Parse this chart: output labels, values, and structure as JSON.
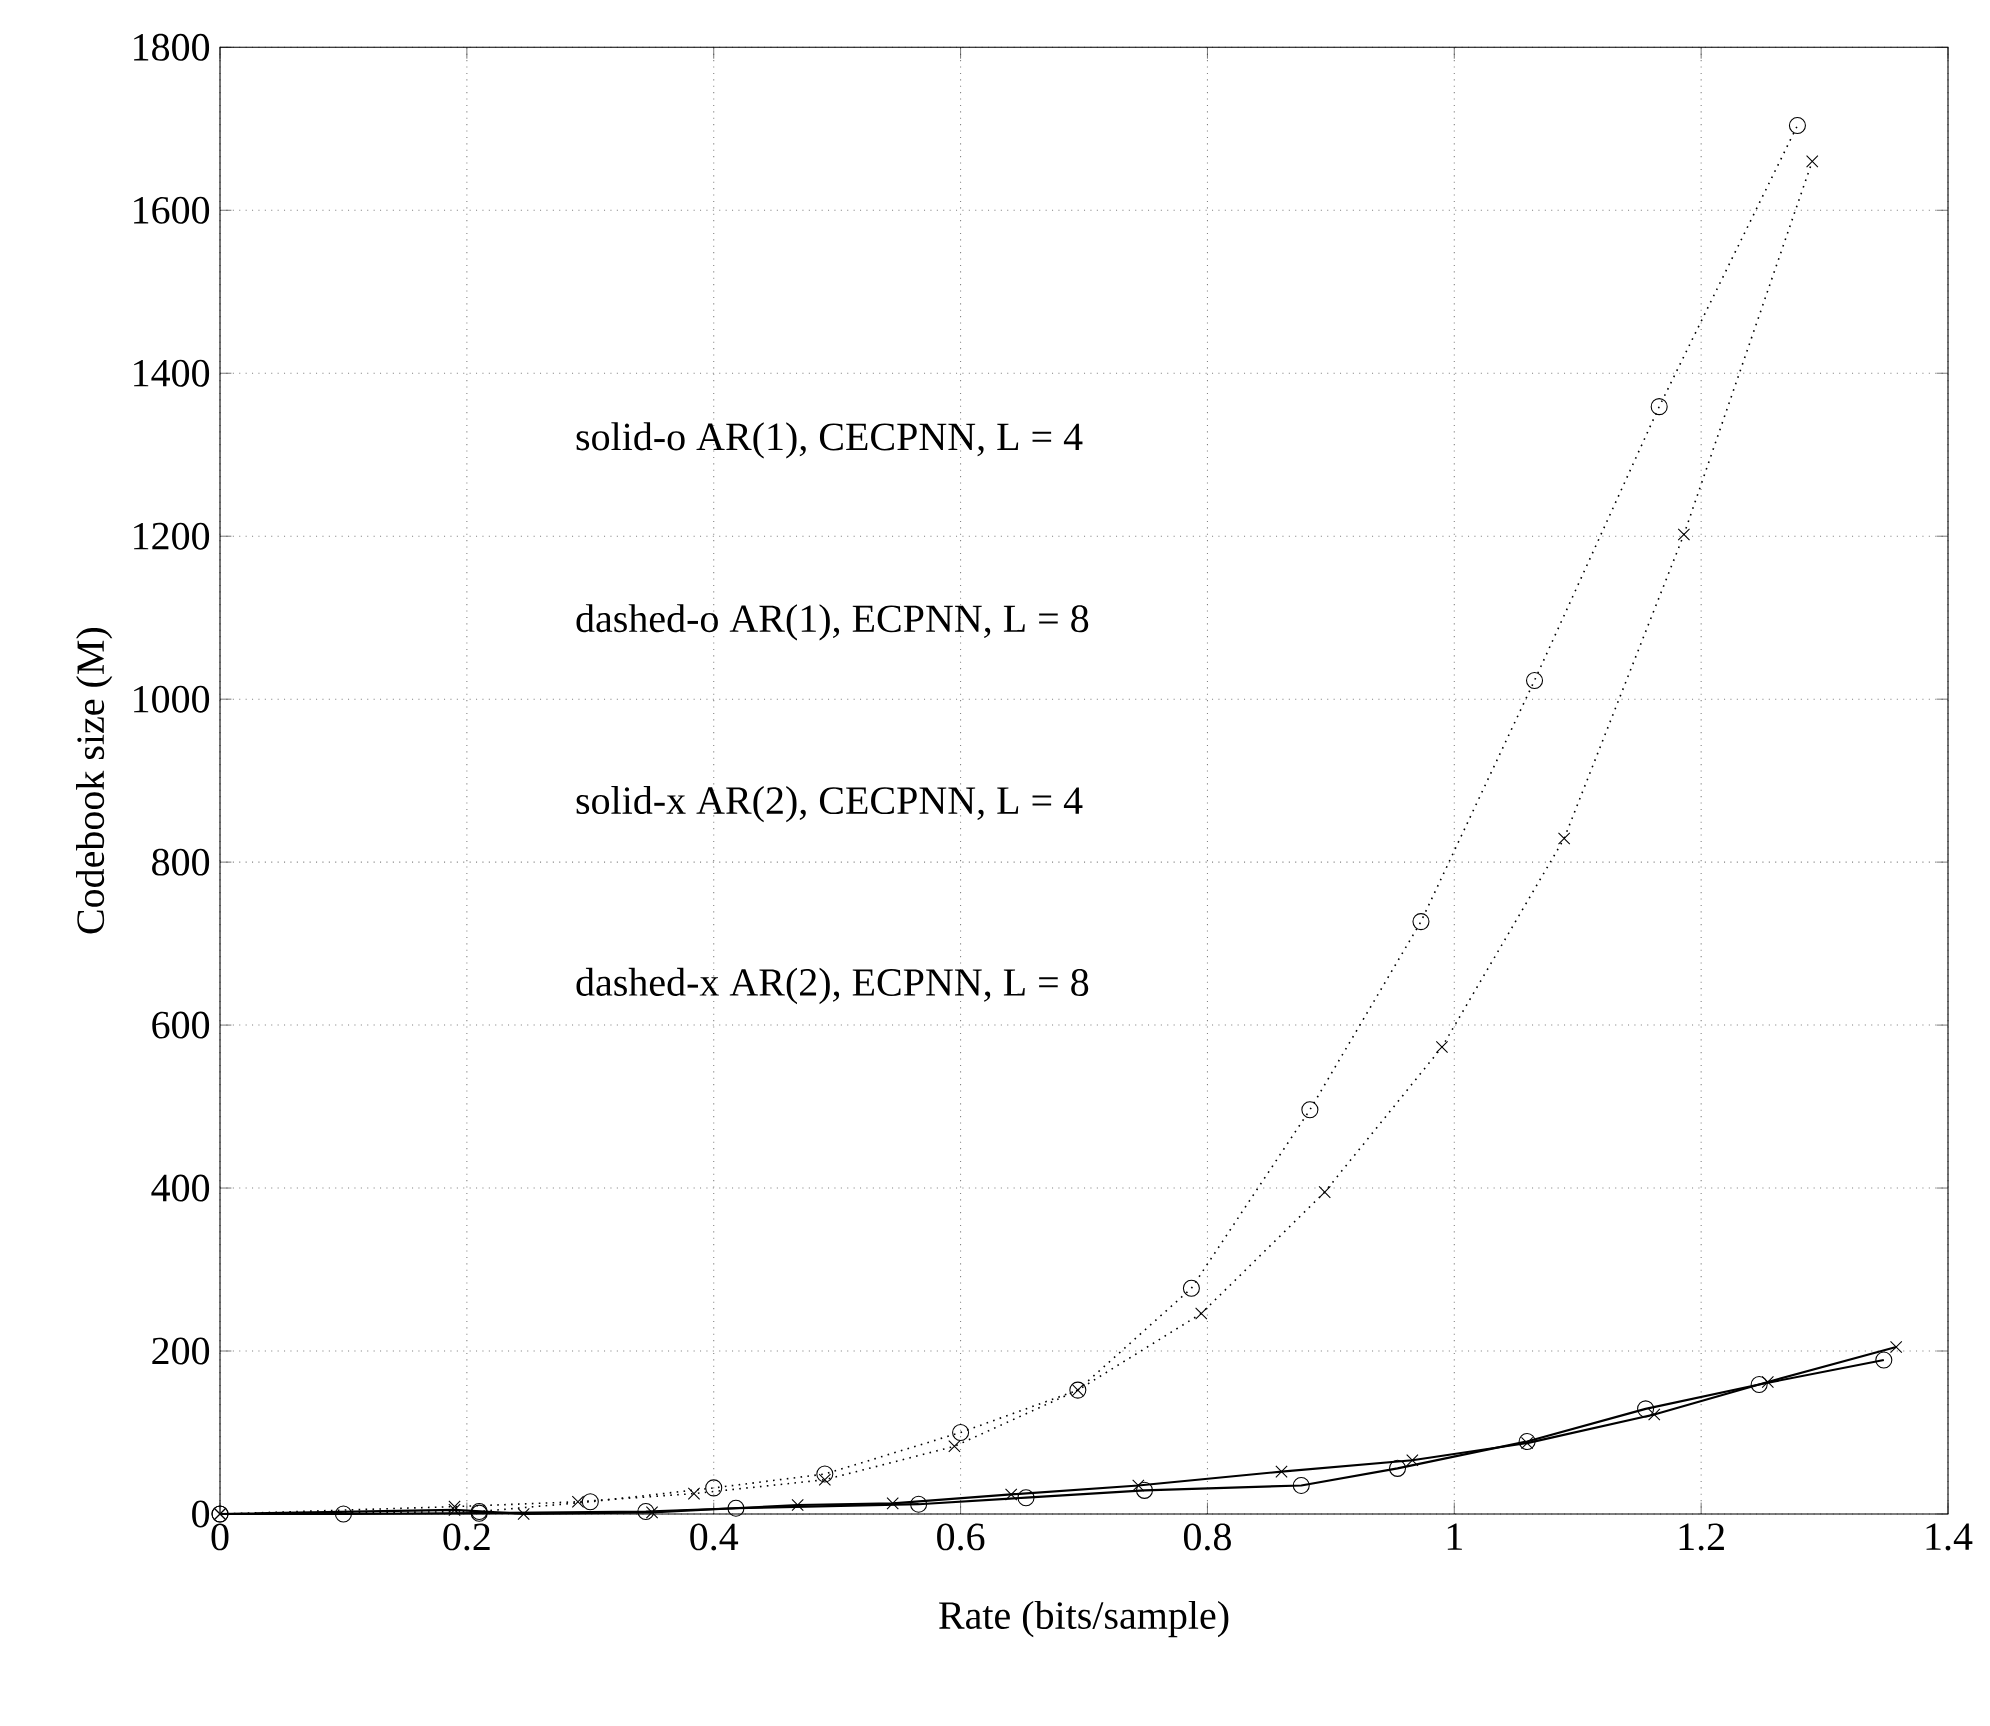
{
  "chart_data": {
    "type": "line",
    "xlabel": "Rate (bits/sample)",
    "ylabel": "Codebook size (M)",
    "xlim": [
      0,
      1.4
    ],
    "ylim": [
      0,
      1800
    ],
    "xticks": [
      0,
      0.2,
      0.4,
      0.6,
      0.8,
      1,
      1.2,
      1.4
    ],
    "yticks": [
      0,
      200,
      400,
      600,
      800,
      1000,
      1200,
      1400,
      1600,
      1800
    ],
    "grid": true,
    "annotations": [
      "solid-o  AR(1), CECPNN, L = 4",
      "dashed-o AR(1), ECPNN, L = 8",
      "solid-x AR(2),  CECPNN, L = 4",
      "dashed-x AR(2), ECPNN, L = 8"
    ],
    "series": [
      {
        "color": "#000000",
        "marker": "circle",
        "line_style": "solid",
        "x": [
          0,
          0.1,
          0.21,
          0.345,
          0.418,
          0.566,
          0.653,
          0.749,
          0.876,
          0.954,
          1.059,
          1.155,
          1.247,
          1.348
        ],
        "values": [
          0,
          0,
          1,
          3,
          7,
          12,
          20,
          29,
          35,
          56,
          89,
          129,
          159,
          189
        ]
      },
      {
        "color": "#000000",
        "marker": "circle",
        "line_style": "dotted",
        "x": [
          0,
          0.21,
          0.3,
          0.4,
          0.49,
          0.6,
          0.695,
          0.787,
          0.883,
          0.973,
          1.065,
          1.166,
          1.278
        ],
        "values": [
          0,
          3,
          15,
          32,
          49,
          100,
          152,
          277,
          496,
          727,
          1023,
          1359,
          1704
        ]
      },
      {
        "color": "#000000",
        "marker": "cross",
        "line_style": "solid",
        "x": [
          0,
          0.19,
          0.246,
          0.35,
          0.468,
          0.545,
          0.641,
          0.744,
          0.86,
          0.966,
          1.059,
          1.162,
          1.254,
          1.358
        ],
        "values": [
          0,
          5,
          0,
          2,
          11,
          13,
          24,
          35,
          52,
          66,
          87,
          122,
          162,
          205
        ]
      },
      {
        "color": "#000000",
        "marker": "cross",
        "line_style": "dotted",
        "x": [
          0,
          0.19,
          0.29,
          0.384,
          0.49,
          0.595,
          0.695,
          0.795,
          0.895,
          0.99,
          1.089,
          1.186,
          1.29
        ],
        "values": [
          0,
          9,
          15,
          25,
          42,
          83,
          152,
          246,
          395,
          573,
          829,
          1202,
          1660
        ]
      }
    ]
  }
}
